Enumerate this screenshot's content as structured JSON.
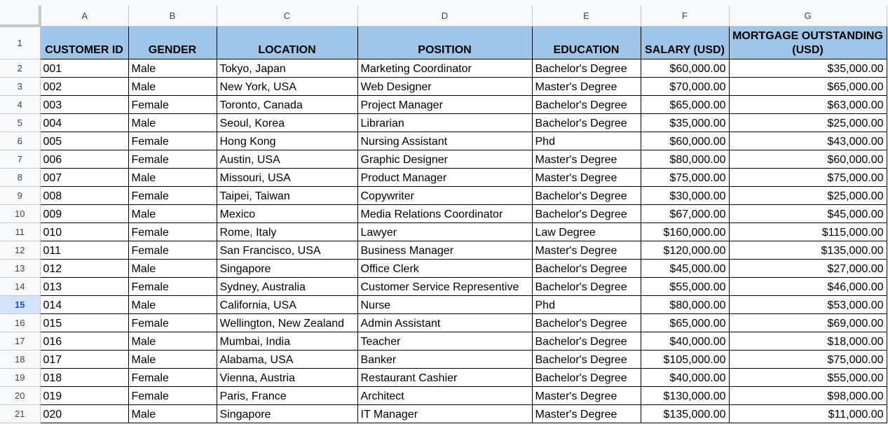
{
  "selected_row": "15",
  "colors": {
    "header_fill": "#9fc5e8",
    "selected_row_header": "#d3e3fd"
  },
  "column_letters": [
    "A",
    "B",
    "C",
    "D",
    "E",
    "F",
    "G"
  ],
  "headers": [
    "CUSTOMER ID",
    "GENDER",
    "LOCATION",
    "POSITION",
    "EDUCATION",
    "SALARY (USD)",
    "MORTGAGE OUTSTANDING (USD)"
  ],
  "rows": [
    [
      "001",
      "Male",
      "Tokyo, Japan",
      "Marketing Coordinator",
      "Bachelor's Degree",
      "$60,000.00",
      "$35,000.00"
    ],
    [
      "002",
      "Male",
      "New York, USA",
      "Web Designer",
      "Master's Degree",
      "$70,000.00",
      "$65,000.00"
    ],
    [
      "003",
      "Female",
      "Toronto, Canada",
      "Project Manager",
      "Bachelor's Degree",
      "$65,000.00",
      "$63,000.00"
    ],
    [
      "004",
      "Male",
      "Seoul, Korea",
      "Librarian",
      "Bachelor's Degree",
      "$35,000.00",
      "$25,000.00"
    ],
    [
      "005",
      "Female",
      "Hong Kong",
      "Nursing Assistant",
      "Phd",
      "$60,000.00",
      "$43,000.00"
    ],
    [
      "006",
      "Female",
      "Austin, USA",
      "Graphic Designer",
      "Master's Degree",
      "$80,000.00",
      "$60,000.00"
    ],
    [
      "007",
      "Male",
      "Missouri, USA",
      "Product Manager",
      "Master's Degree",
      "$75,000.00",
      "$75,000.00"
    ],
    [
      "008",
      "Female",
      "Taipei, Taiwan",
      "Copywriter",
      "Bachelor's Degree",
      "$30,000.00",
      "$25,000.00"
    ],
    [
      "009",
      "Male",
      "Mexico",
      "Media Relations Coordinator",
      "Bachelor's Degree",
      "$67,000.00",
      "$45,000.00"
    ],
    [
      "010",
      "Female",
      "Rome, Italy",
      "Lawyer",
      "Law Degree",
      "$160,000.00",
      "$115,000.00"
    ],
    [
      "011",
      "Female",
      "San Francisco, USA",
      "Business Manager",
      "Master's Degree",
      "$120,000.00",
      "$135,000.00"
    ],
    [
      "012",
      "Male",
      "Singapore",
      "Office Clerk",
      "Bachelor's Degree",
      "$45,000.00",
      "$27,000.00"
    ],
    [
      "013",
      "Female",
      "Sydney, Australia",
      "Customer Service Representive",
      "Bachelor's Degree",
      "$55,000.00",
      "$46,000.00"
    ],
    [
      "014",
      "Male",
      "California, USA",
      "Nurse",
      "Phd",
      "$80,000.00",
      "$53,000.00"
    ],
    [
      "015",
      "Female",
      "Wellington, New Zealand",
      "Admin Assistant",
      "Bachelor's Degree",
      "$65,000.00",
      "$69,000.00"
    ],
    [
      "016",
      "Male",
      "Mumbai, India",
      "Teacher",
      "Bachelor's Degree",
      "$40,000.00",
      "$18,000.00"
    ],
    [
      "017",
      "Male",
      "Alabama, USA",
      "Banker",
      "Bachelor's Degree",
      "$105,000.00",
      "$75,000.00"
    ],
    [
      "018",
      "Female",
      "Vienna, Austria",
      "Restaurant Cashier",
      "Bachelor's Degree",
      "$40,000.00",
      "$55,000.00"
    ],
    [
      "019",
      "Female",
      "Paris, France",
      "Architect",
      "Master's Degree",
      "$130,000.00",
      "$98,000.00"
    ],
    [
      "020",
      "Male",
      "Singapore",
      "IT Manager",
      "Master's Degree",
      "$135,000.00",
      "$11,000.00"
    ]
  ]
}
